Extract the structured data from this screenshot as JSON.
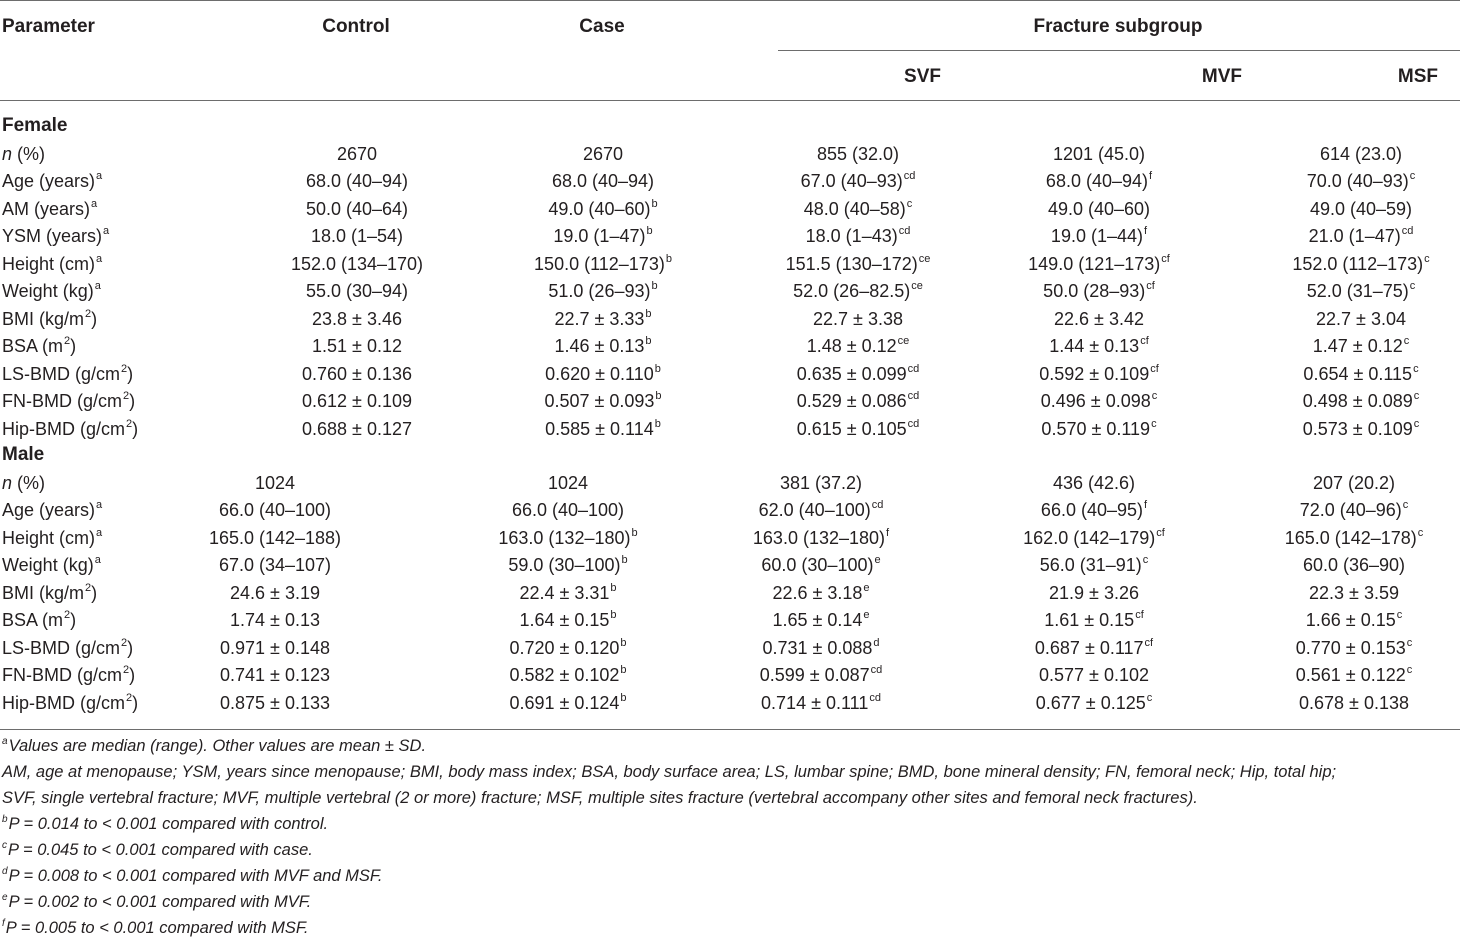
{
  "header": {
    "parameter": "Parameter",
    "control": "Control",
    "case": "Case",
    "fracture_subgroup": "Fracture subgroup",
    "svf": "SVF",
    "mvf": "MVF",
    "msf": "MSF"
  },
  "female": {
    "title": "Female",
    "rows": [
      {
        "label": "n",
        "label_rest": " (%)",
        "label_italic": true,
        "control": "2670",
        "case": "2670",
        "case_sup": "",
        "svf": "855 (32.0)",
        "svf_sup": "",
        "mvf": "1201 (45.0)",
        "mvf_sup": "",
        "msf": "614 (23.0)",
        "msf_sup": ""
      },
      {
        "label": "Age (years)",
        "label_sup": "a",
        "control": "68.0 (40–94)",
        "case": "68.0 (40–94)",
        "case_sup": "",
        "svf": "67.0 (40–93)",
        "svf_sup": "cd",
        "mvf": "68.0 (40–94)",
        "mvf_sup": "f",
        "msf": "70.0 (40–93)",
        "msf_sup": "c"
      },
      {
        "label": "AM (years)",
        "label_sup": "a",
        "control": "50.0 (40–64)",
        "case": "49.0 (40–60)",
        "case_sup": "b",
        "svf": "48.0 (40–58)",
        "svf_sup": "c",
        "mvf": "49.0 (40–60)",
        "mvf_sup": "",
        "msf": "49.0 (40–59)",
        "msf_sup": ""
      },
      {
        "label": "YSM (years)",
        "label_sup": "a",
        "control": "18.0 (1–54)",
        "case": "19.0 (1–47)",
        "case_sup": "b",
        "svf": "18.0 (1–43)",
        "svf_sup": "cd",
        "mvf": "19.0 (1–44)",
        "mvf_sup": "f",
        "msf": "21.0 (1–47)",
        "msf_sup": "cd"
      },
      {
        "label": "Height (cm)",
        "label_sup": "a",
        "control": "152.0 (134–170)",
        "case": "150.0 (112–173)",
        "case_sup": "b",
        "svf": "151.5 (130–172)",
        "svf_sup": "ce",
        "mvf": "149.0 (121–173)",
        "mvf_sup": "cf",
        "msf": "152.0 (112–173)",
        "msf_sup": "c"
      },
      {
        "label": "Weight (kg)",
        "label_sup": "a",
        "control": "55.0 (30–94)",
        "case": "51.0 (26–93)",
        "case_sup": "b",
        "svf": "52.0 (26–82.5)",
        "svf_sup": "ce",
        "mvf": "50.0 (28–93)",
        "mvf_sup": "cf",
        "msf": "52.0 (31–75)",
        "msf_sup": "c"
      },
      {
        "label": "BMI (kg/m",
        "label_sup": "2",
        "label_rest": ")",
        "control": "23.8 ± 3.46",
        "case": "22.7 ± 3.33",
        "case_sup": "b",
        "svf": "22.7 ± 3.38",
        "svf_sup": "",
        "mvf": "22.6 ± 3.42",
        "mvf_sup": "",
        "msf": "22.7 ± 3.04",
        "msf_sup": ""
      },
      {
        "label": "BSA (m",
        "label_sup": "2",
        "label_rest": ")",
        "control": "1.51 ± 0.12",
        "case": "1.46 ± 0.13",
        "case_sup": "b",
        "svf": "1.48 ± 0.12",
        "svf_sup": "ce",
        "mvf": "1.44 ± 0.13",
        "mvf_sup": "cf",
        "msf": "1.47 ± 0.12",
        "msf_sup": "c"
      },
      {
        "label": "LS-BMD (g/cm",
        "label_sup": "2",
        "label_rest": ")",
        "control": "0.760 ± 0.136",
        "case": "0.620 ± 0.110",
        "case_sup": "b",
        "svf": "0.635 ± 0.099",
        "svf_sup": "cd",
        "mvf": "0.592 ± 0.109",
        "mvf_sup": "cf",
        "msf": "0.654 ± 0.115",
        "msf_sup": "c"
      },
      {
        "label": "FN-BMD (g/cm",
        "label_sup": "2",
        "label_rest": ")",
        "control": "0.612 ± 0.109",
        "case": "0.507 ± 0.093",
        "case_sup": "b",
        "svf": "0.529 ± 0.086",
        "svf_sup": "cd",
        "mvf": "0.496 ± 0.098",
        "mvf_sup": "c",
        "msf": "0.498 ± 0.089",
        "msf_sup": "c"
      },
      {
        "label": "Hip-BMD (g/cm",
        "label_sup": "2",
        "label_rest": ")",
        "control": "0.688 ± 0.127",
        "case": "0.585 ± 0.114",
        "case_sup": "b",
        "svf": "0.615 ± 0.105",
        "svf_sup": "cd",
        "mvf": "0.570 ± 0.119",
        "mvf_sup": "c",
        "msf": "0.573 ± 0.109",
        "msf_sup": "c"
      }
    ]
  },
  "male": {
    "title": "Male",
    "rows": [
      {
        "label": "n",
        "label_rest": " (%)",
        "label_italic": true,
        "control": "1024",
        "case": "1024",
        "case_sup": "",
        "svf": "381 (37.2)",
        "svf_sup": "",
        "mvf": "436 (42.6)",
        "mvf_sup": "",
        "msf": "207 (20.2)",
        "msf_sup": ""
      },
      {
        "label": "Age (years)",
        "label_sup": "a",
        "control": "66.0 (40–100)",
        "case": "66.0 (40–100)",
        "case_sup": "",
        "svf": "62.0 (40–100)",
        "svf_sup": "cd",
        "mvf": "66.0 (40–95)",
        "mvf_sup": "f",
        "msf": "72.0 (40–96)",
        "msf_sup": "c"
      },
      {
        "label": "Height (cm)",
        "label_sup": "a",
        "control": "165.0 (142–188)",
        "case": "163.0 (132–180)",
        "case_sup": "b",
        "svf": "163.0 (132–180)",
        "svf_sup": "f",
        "mvf": "162.0 (142–179)",
        "mvf_sup": "cf",
        "msf": "165.0 (142–178)",
        "msf_sup": "c"
      },
      {
        "label": "Weight (kg)",
        "label_sup": "a",
        "control": "67.0 (34–107)",
        "case": "59.0 (30–100)",
        "case_sup": "b",
        "svf": "60.0 (30–100)",
        "svf_sup": "e",
        "mvf": "56.0 (31–91)",
        "mvf_sup": "c",
        "msf": "60.0 (36–90)",
        "msf_sup": ""
      },
      {
        "label": "BMI (kg/m",
        "label_sup": "2",
        "label_rest": ")",
        "control": "24.6 ± 3.19",
        "case": "22.4 ± 3.31",
        "case_sup": "b",
        "svf": "22.6 ± 3.18",
        "svf_sup": "e",
        "mvf": "21.9 ± 3.26",
        "mvf_sup": "",
        "msf": "22.3 ± 3.59",
        "msf_sup": ""
      },
      {
        "label": "BSA (m",
        "label_sup": "2",
        "label_rest": ")",
        "control": "1.74 ± 0.13",
        "case": "1.64 ± 0.15",
        "case_sup": "b",
        "svf": "1.65 ± 0.14",
        "svf_sup": "e",
        "mvf": "1.61 ± 0.15",
        "mvf_sup": "cf",
        "msf": "1.66 ± 0.15",
        "msf_sup": "c"
      },
      {
        "label": "LS-BMD (g/cm",
        "label_sup": "2",
        "label_rest": ")",
        "control": "0.971 ± 0.148",
        "case": "0.720 ± 0.120",
        "case_sup": "b",
        "svf": "0.731 ± 0.088",
        "svf_sup": "d",
        "mvf": "0.687 ± 0.117",
        "mvf_sup": "cf",
        "msf": "0.770 ± 0.153",
        "msf_sup": "c"
      },
      {
        "label": "FN-BMD (g/cm",
        "label_sup": "2",
        "label_rest": ")",
        "control": "0.741 ± 0.123",
        "case": "0.582 ± 0.102",
        "case_sup": "b",
        "svf": "0.599 ± 0.087",
        "svf_sup": "cd",
        "mvf": "0.577 ± 0.102",
        "mvf_sup": "",
        "msf": "0.561 ± 0.122",
        "msf_sup": "c"
      },
      {
        "label": "Hip-BMD (g/cm",
        "label_sup": "2",
        "label_rest": ")",
        "control": "0.875 ± 0.133",
        "case": "0.691 ± 0.124",
        "case_sup": "b",
        "svf": "0.714 ± 0.111",
        "svf_sup": "cd",
        "mvf": "0.677 ± 0.125",
        "mvf_sup": "c",
        "msf": "0.678 ± 0.138",
        "msf_sup": ""
      }
    ]
  },
  "footnotes": [
    {
      "sup": "a",
      "text": "Values are median (range). Other values are mean ± SD."
    },
    {
      "sup": "",
      "text": "AM, age at menopause; YSM, years since menopause; BMI, body mass index; BSA, body surface area; LS, lumbar spine; BMD, bone mineral density; FN, femoral neck; Hip, total hip;"
    },
    {
      "sup": "",
      "text": "SVF, single vertebral fracture; MVF, multiple vertebral (2 or more) fracture; MSF, multiple sites fracture (vertebral accompany other sites and femoral neck fractures)."
    },
    {
      "sup": "b",
      "text": "P = 0.014 to < 0.001 compared with control."
    },
    {
      "sup": "c",
      "text": "P = 0.045 to < 0.001 compared with case."
    },
    {
      "sup": "d",
      "text": "P = 0.008 to < 0.001 compared with MVF and MSF."
    },
    {
      "sup": "e",
      "text": "P = 0.002 to < 0.001 compared with MVF."
    },
    {
      "sup": "f",
      "text": "P = 0.005 to < 0.001 compared with MSF."
    }
  ]
}
